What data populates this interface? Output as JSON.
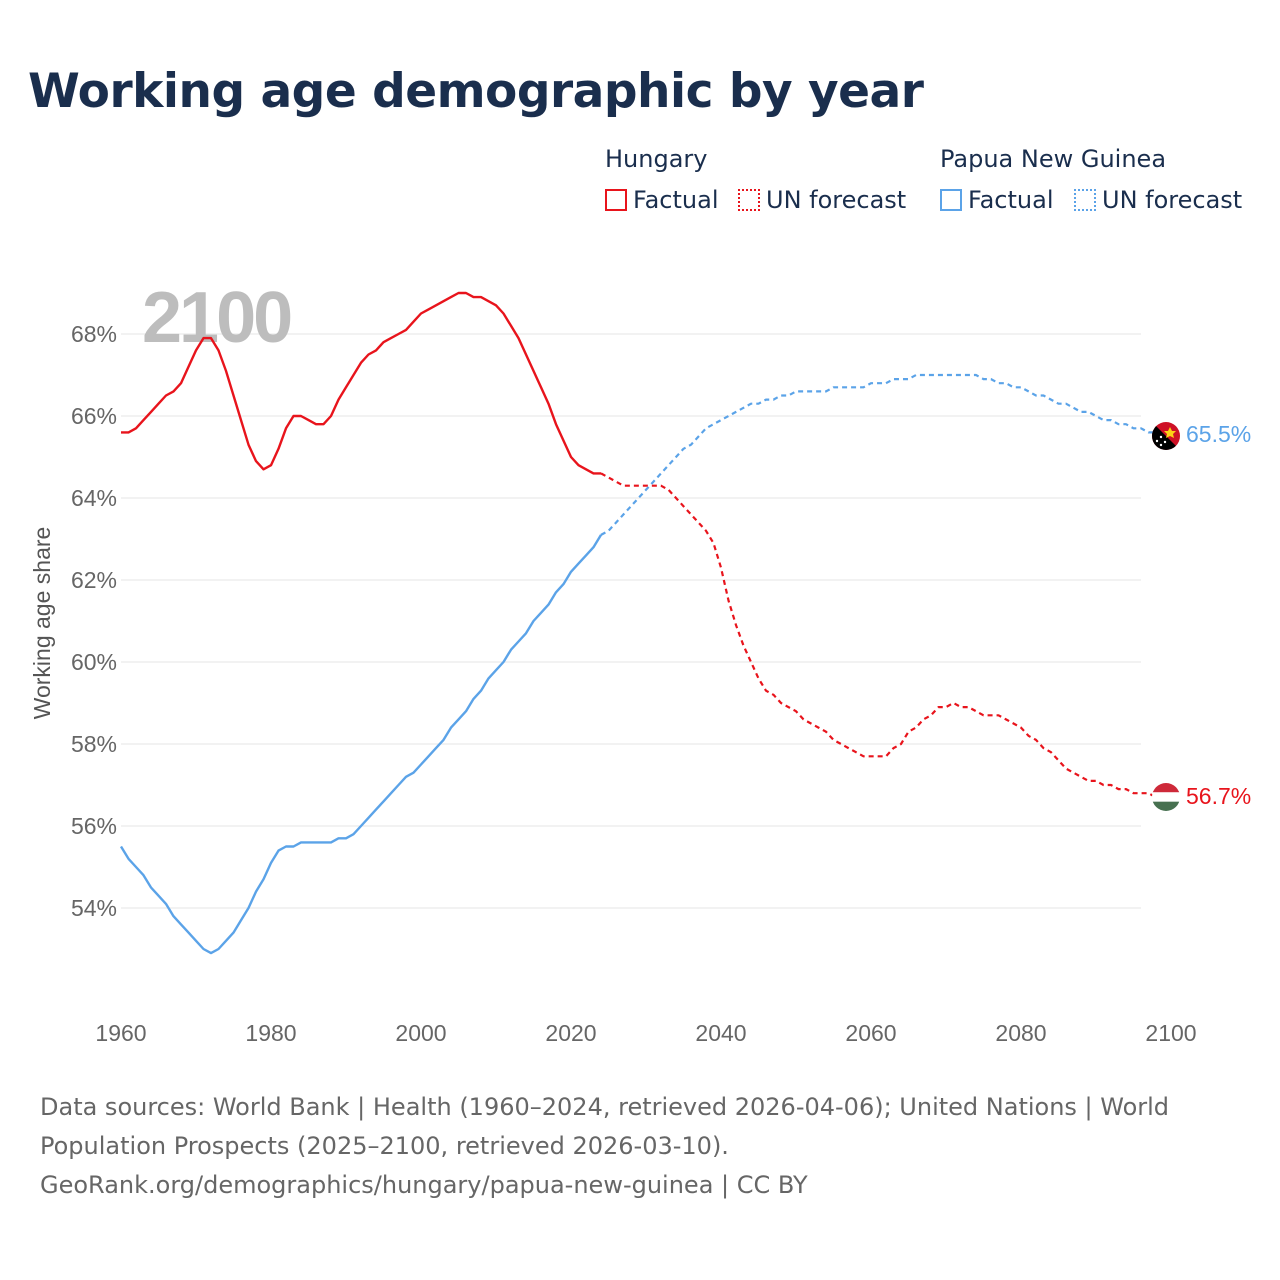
{
  "title": "Working age demographic by year",
  "legend": {
    "groups": [
      {
        "name": "Hungary",
        "factual_label": "Factual",
        "forecast_label": "UN forecast",
        "color": "#e8141c"
      },
      {
        "name": "Papua New Guinea",
        "factual_label": "Factual",
        "forecast_label": "UN forecast",
        "color": "#5ba3e8"
      }
    ]
  },
  "chart_data": {
    "type": "line",
    "title": "Working age demographic by year",
    "ylabel": "Working age share",
    "xlabel": "",
    "year_label": "2100",
    "xlim": [
      1960,
      2100
    ],
    "ylim": [
      52,
      70
    ],
    "x_ticks": [
      "1960",
      "1980",
      "2000",
      "2020",
      "2040",
      "2060",
      "2080",
      "2100"
    ],
    "y_ticks": [
      "54%",
      "56%",
      "58%",
      "60%",
      "62%",
      "64%",
      "66%",
      "68%"
    ],
    "y_tick_values": [
      54,
      56,
      58,
      60,
      62,
      64,
      66,
      68
    ],
    "grid": true,
    "factual_range": [
      1960,
      2024
    ],
    "forecast_range": [
      2025,
      2100
    ],
    "series": [
      {
        "name": "Hungary",
        "color": "#e8141c",
        "end_label": "56.7%",
        "factual": [
          [
            1960,
            65.6
          ],
          [
            1961,
            65.6
          ],
          [
            1962,
            65.7
          ],
          [
            1963,
            65.9
          ],
          [
            1964,
            66.1
          ],
          [
            1965,
            66.3
          ],
          [
            1966,
            66.5
          ],
          [
            1967,
            66.6
          ],
          [
            1968,
            66.8
          ],
          [
            1969,
            67.2
          ],
          [
            1970,
            67.6
          ],
          [
            1971,
            67.9
          ],
          [
            1972,
            67.9
          ],
          [
            1973,
            67.6
          ],
          [
            1974,
            67.1
          ],
          [
            1975,
            66.5
          ],
          [
            1976,
            65.9
          ],
          [
            1977,
            65.3
          ],
          [
            1978,
            64.9
          ],
          [
            1979,
            64.7
          ],
          [
            1980,
            64.8
          ],
          [
            1981,
            65.2
          ],
          [
            1982,
            65.7
          ],
          [
            1983,
            66.0
          ],
          [
            1984,
            66.0
          ],
          [
            1985,
            65.9
          ],
          [
            1986,
            65.8
          ],
          [
            1987,
            65.8
          ],
          [
            1988,
            66.0
          ],
          [
            1989,
            66.4
          ],
          [
            1990,
            66.7
          ],
          [
            1991,
            67.0
          ],
          [
            1992,
            67.3
          ],
          [
            1993,
            67.5
          ],
          [
            1994,
            67.6
          ],
          [
            1995,
            67.8
          ],
          [
            1996,
            67.9
          ],
          [
            1997,
            68.0
          ],
          [
            1998,
            68.1
          ],
          [
            1999,
            68.3
          ],
          [
            2000,
            68.5
          ],
          [
            2001,
            68.6
          ],
          [
            2002,
            68.7
          ],
          [
            2003,
            68.8
          ],
          [
            2004,
            68.9
          ],
          [
            2005,
            69.0
          ],
          [
            2006,
            69.0
          ],
          [
            2007,
            68.9
          ],
          [
            2008,
            68.9
          ],
          [
            2009,
            68.8
          ],
          [
            2010,
            68.7
          ],
          [
            2011,
            68.5
          ],
          [
            2012,
            68.2
          ],
          [
            2013,
            67.9
          ],
          [
            2014,
            67.5
          ],
          [
            2015,
            67.1
          ],
          [
            2016,
            66.7
          ],
          [
            2017,
            66.3
          ],
          [
            2018,
            65.8
          ],
          [
            2019,
            65.4
          ],
          [
            2020,
            65.0
          ],
          [
            2021,
            64.8
          ],
          [
            2022,
            64.7
          ],
          [
            2023,
            64.6
          ],
          [
            2024,
            64.6
          ]
        ],
        "forecast": [
          [
            2024,
            64.6
          ],
          [
            2025,
            64.5
          ],
          [
            2026,
            64.4
          ],
          [
            2027,
            64.3
          ],
          [
            2028,
            64.3
          ],
          [
            2029,
            64.3
          ],
          [
            2030,
            64.3
          ],
          [
            2031,
            64.3
          ],
          [
            2032,
            64.3
          ],
          [
            2033,
            64.2
          ],
          [
            2034,
            64.0
          ],
          [
            2035,
            63.8
          ],
          [
            2036,
            63.6
          ],
          [
            2037,
            63.4
          ],
          [
            2038,
            63.2
          ],
          [
            2039,
            62.9
          ],
          [
            2040,
            62.3
          ],
          [
            2041,
            61.5
          ],
          [
            2042,
            60.9
          ],
          [
            2043,
            60.4
          ],
          [
            2044,
            60.0
          ],
          [
            2045,
            59.6
          ],
          [
            2046,
            59.3
          ],
          [
            2047,
            59.2
          ],
          [
            2048,
            59.0
          ],
          [
            2049,
            58.9
          ],
          [
            2050,
            58.8
          ],
          [
            2051,
            58.6
          ],
          [
            2052,
            58.5
          ],
          [
            2053,
            58.4
          ],
          [
            2054,
            58.3
          ],
          [
            2055,
            58.1
          ],
          [
            2056,
            58.0
          ],
          [
            2057,
            57.9
          ],
          [
            2058,
            57.8
          ],
          [
            2059,
            57.7
          ],
          [
            2060,
            57.7
          ],
          [
            2061,
            57.7
          ],
          [
            2062,
            57.7
          ],
          [
            2063,
            57.9
          ],
          [
            2064,
            58.0
          ],
          [
            2065,
            58.3
          ],
          [
            2066,
            58.4
          ],
          [
            2067,
            58.6
          ],
          [
            2068,
            58.7
          ],
          [
            2069,
            58.9
          ],
          [
            2070,
            58.9
          ],
          [
            2071,
            59.0
          ],
          [
            2072,
            58.9
          ],
          [
            2073,
            58.9
          ],
          [
            2074,
            58.8
          ],
          [
            2075,
            58.7
          ],
          [
            2076,
            58.7
          ],
          [
            2077,
            58.7
          ],
          [
            2078,
            58.6
          ],
          [
            2079,
            58.5
          ],
          [
            2080,
            58.4
          ],
          [
            2081,
            58.2
          ],
          [
            2082,
            58.1
          ],
          [
            2083,
            57.9
          ],
          [
            2084,
            57.8
          ],
          [
            2085,
            57.6
          ],
          [
            2086,
            57.4
          ],
          [
            2087,
            57.3
          ],
          [
            2088,
            57.2
          ],
          [
            2089,
            57.1
          ],
          [
            2090,
            57.1
          ],
          [
            2091,
            57.0
          ],
          [
            2092,
            57.0
          ],
          [
            2093,
            56.9
          ],
          [
            2094,
            56.9
          ],
          [
            2095,
            56.8
          ],
          [
            2096,
            56.8
          ],
          [
            2097,
            56.8
          ],
          [
            2098,
            56.7
          ],
          [
            2099,
            56.7
          ],
          [
            2100,
            56.7
          ]
        ]
      },
      {
        "name": "Papua New Guinea",
        "color": "#5ba3e8",
        "end_label": "65.5%",
        "factual": [
          [
            1960,
            55.5
          ],
          [
            1961,
            55.2
          ],
          [
            1962,
            55.0
          ],
          [
            1963,
            54.8
          ],
          [
            1964,
            54.5
          ],
          [
            1965,
            54.3
          ],
          [
            1966,
            54.1
          ],
          [
            1967,
            53.8
          ],
          [
            1968,
            53.6
          ],
          [
            1969,
            53.4
          ],
          [
            1970,
            53.2
          ],
          [
            1971,
            53.0
          ],
          [
            1972,
            52.9
          ],
          [
            1973,
            53.0
          ],
          [
            1974,
            53.2
          ],
          [
            1975,
            53.4
          ],
          [
            1976,
            53.7
          ],
          [
            1977,
            54.0
          ],
          [
            1978,
            54.4
          ],
          [
            1979,
            54.7
          ],
          [
            1980,
            55.1
          ],
          [
            1981,
            55.4
          ],
          [
            1982,
            55.5
          ],
          [
            1983,
            55.5
          ],
          [
            1984,
            55.6
          ],
          [
            1985,
            55.6
          ],
          [
            1986,
            55.6
          ],
          [
            1987,
            55.6
          ],
          [
            1988,
            55.6
          ],
          [
            1989,
            55.7
          ],
          [
            1990,
            55.7
          ],
          [
            1991,
            55.8
          ],
          [
            1992,
            56.0
          ],
          [
            1993,
            56.2
          ],
          [
            1994,
            56.4
          ],
          [
            1995,
            56.6
          ],
          [
            1996,
            56.8
          ],
          [
            1997,
            57.0
          ],
          [
            1998,
            57.2
          ],
          [
            1999,
            57.3
          ],
          [
            2000,
            57.5
          ],
          [
            2001,
            57.7
          ],
          [
            2002,
            57.9
          ],
          [
            2003,
            58.1
          ],
          [
            2004,
            58.4
          ],
          [
            2005,
            58.6
          ],
          [
            2006,
            58.8
          ],
          [
            2007,
            59.1
          ],
          [
            2008,
            59.3
          ],
          [
            2009,
            59.6
          ],
          [
            2010,
            59.8
          ],
          [
            2011,
            60.0
          ],
          [
            2012,
            60.3
          ],
          [
            2013,
            60.5
          ],
          [
            2014,
            60.7
          ],
          [
            2015,
            61.0
          ],
          [
            2016,
            61.2
          ],
          [
            2017,
            61.4
          ],
          [
            2018,
            61.7
          ],
          [
            2019,
            61.9
          ],
          [
            2020,
            62.2
          ],
          [
            2021,
            62.4
          ],
          [
            2022,
            62.6
          ],
          [
            2023,
            62.8
          ],
          [
            2024,
            63.1
          ]
        ],
        "forecast": [
          [
            2024,
            63.1
          ],
          [
            2025,
            63.2
          ],
          [
            2026,
            63.4
          ],
          [
            2027,
            63.6
          ],
          [
            2028,
            63.8
          ],
          [
            2029,
            64.0
          ],
          [
            2030,
            64.2
          ],
          [
            2031,
            64.4
          ],
          [
            2032,
            64.6
          ],
          [
            2033,
            64.8
          ],
          [
            2034,
            65.0
          ],
          [
            2035,
            65.2
          ],
          [
            2036,
            65.3
          ],
          [
            2037,
            65.5
          ],
          [
            2038,
            65.7
          ],
          [
            2039,
            65.8
          ],
          [
            2040,
            65.9
          ],
          [
            2041,
            66.0
          ],
          [
            2042,
            66.1
          ],
          [
            2043,
            66.2
          ],
          [
            2044,
            66.3
          ],
          [
            2045,
            66.3
          ],
          [
            2046,
            66.4
          ],
          [
            2047,
            66.4
          ],
          [
            2048,
            66.5
          ],
          [
            2049,
            66.5
          ],
          [
            2050,
            66.6
          ],
          [
            2051,
            66.6
          ],
          [
            2052,
            66.6
          ],
          [
            2053,
            66.6
          ],
          [
            2054,
            66.6
          ],
          [
            2055,
            66.7
          ],
          [
            2056,
            66.7
          ],
          [
            2057,
            66.7
          ],
          [
            2058,
            66.7
          ],
          [
            2059,
            66.7
          ],
          [
            2060,
            66.8
          ],
          [
            2061,
            66.8
          ],
          [
            2062,
            66.8
          ],
          [
            2063,
            66.9
          ],
          [
            2064,
            66.9
          ],
          [
            2065,
            66.9
          ],
          [
            2066,
            67.0
          ],
          [
            2067,
            67.0
          ],
          [
            2068,
            67.0
          ],
          [
            2069,
            67.0
          ],
          [
            2070,
            67.0
          ],
          [
            2071,
            67.0
          ],
          [
            2072,
            67.0
          ],
          [
            2073,
            67.0
          ],
          [
            2074,
            67.0
          ],
          [
            2075,
            66.9
          ],
          [
            2076,
            66.9
          ],
          [
            2077,
            66.8
          ],
          [
            2078,
            66.8
          ],
          [
            2079,
            66.7
          ],
          [
            2080,
            66.7
          ],
          [
            2081,
            66.6
          ],
          [
            2082,
            66.5
          ],
          [
            2083,
            66.5
          ],
          [
            2084,
            66.4
          ],
          [
            2085,
            66.3
          ],
          [
            2086,
            66.3
          ],
          [
            2087,
            66.2
          ],
          [
            2088,
            66.1
          ],
          [
            2089,
            66.1
          ],
          [
            2090,
            66.0
          ],
          [
            2091,
            65.9
          ],
          [
            2092,
            65.9
          ],
          [
            2093,
            65.8
          ],
          [
            2094,
            65.8
          ],
          [
            2095,
            65.7
          ],
          [
            2096,
            65.7
          ],
          [
            2097,
            65.6
          ],
          [
            2098,
            65.6
          ],
          [
            2099,
            65.5
          ],
          [
            2100,
            65.5
          ]
        ]
      }
    ]
  },
  "footer": {
    "line1": "Data sources: World Bank | Health (1960–2024, retrieved 2026-04-06); United Nations | World",
    "line2": "Population Prospects (2025–2100, retrieved 2026-03-10).",
    "line3": "GeoRank.org/demographics/hungary/papua-new-guinea | CC BY"
  }
}
